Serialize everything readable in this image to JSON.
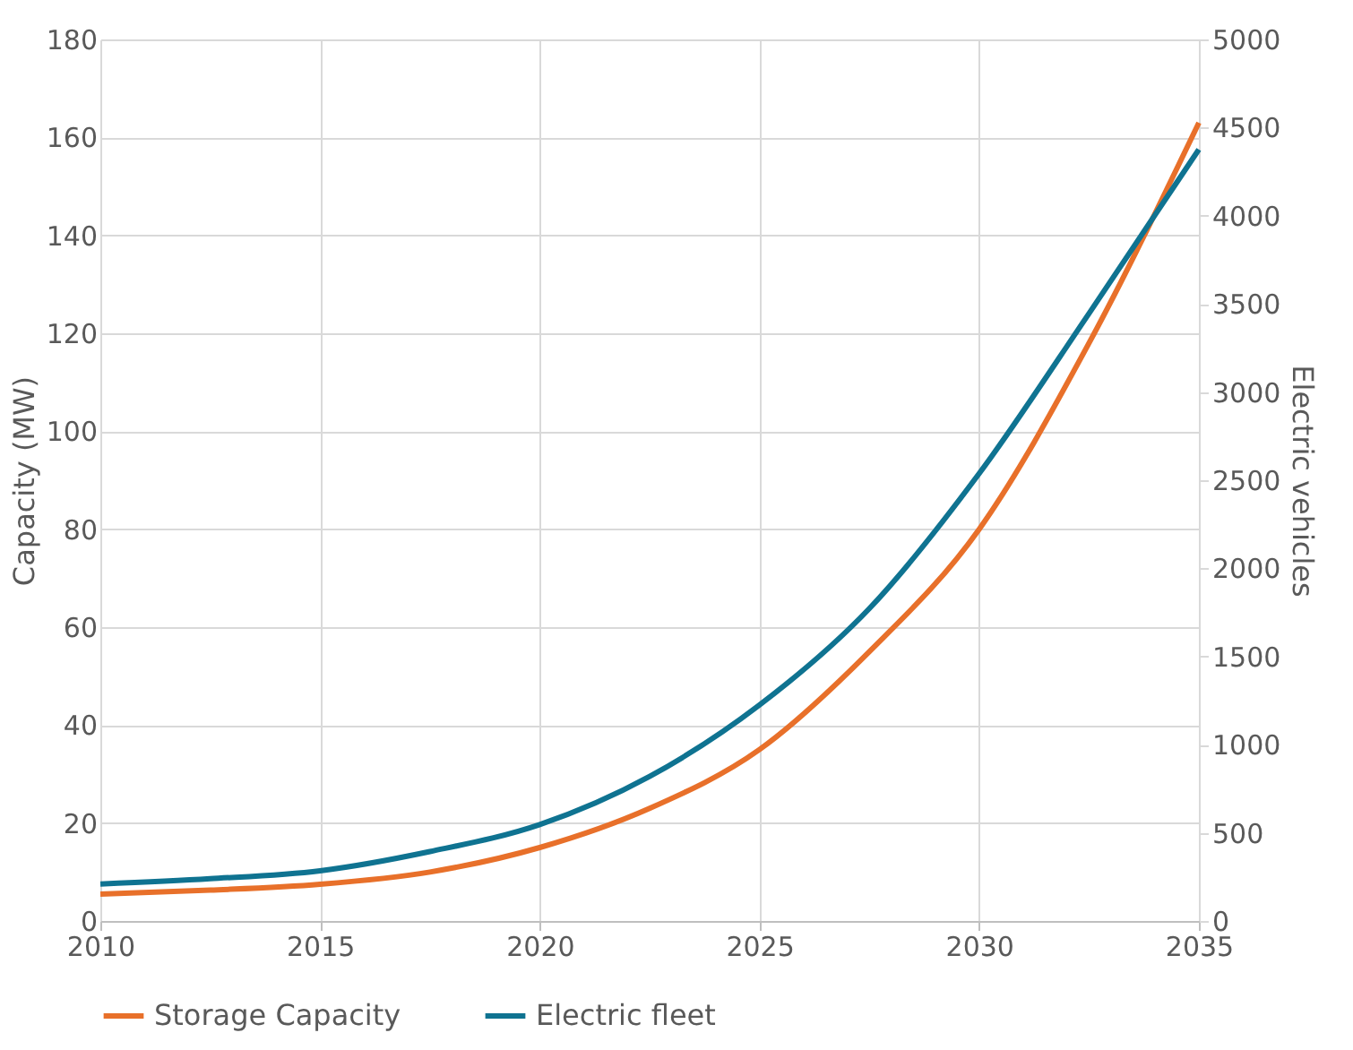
{
  "chart_data": {
    "type": "line",
    "ylabel": "Capacity (MW)",
    "y2label": "Electric vehicles",
    "x": [
      2010,
      2012.5,
      2015,
      2017.5,
      2020,
      2022.5,
      2025,
      2027.5,
      2030,
      2032.5,
      2035
    ],
    "series": [
      {
        "name": "Storage Capacity",
        "color": "#e8702a",
        "values": [
          5.5,
          6.3,
          7.5,
          10,
          15,
          23,
          35,
          55,
          80,
          118,
          163
        ]
      },
      {
        "name": "Electric fleet",
        "color": "#0f7391",
        "axis": "y2",
        "values": [
          210,
          240,
          285,
          394,
          547,
          820,
          1225,
          1772,
          2538,
          3446,
          4376
        ]
      }
    ],
    "xlim": [
      2010,
      2035
    ],
    "xticks": [
      2010,
      2015,
      2020,
      2025,
      2030,
      2035
    ],
    "ylim": [
      0,
      180
    ],
    "yticks": [
      0,
      20,
      40,
      60,
      80,
      100,
      120,
      140,
      160,
      180
    ],
    "y2lim": [
      0,
      5000
    ],
    "y2ticks": [
      0,
      500,
      1000,
      1500,
      2000,
      2500,
      3000,
      3500,
      4000,
      4500,
      5000
    ],
    "grid": true,
    "legend": "bottom",
    "line_style": "solid",
    "marker": "none"
  }
}
